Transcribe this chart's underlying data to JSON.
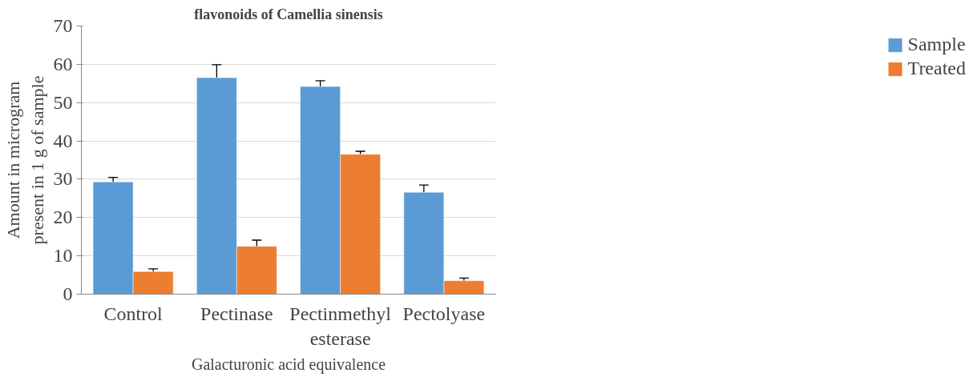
{
  "chart_data": {
    "type": "bar",
    "title": "flavonoids of Camellia sinensis",
    "categories": [
      "Control",
      "Pectinase",
      "Pectinmethyl esterase",
      "Pectolyase"
    ],
    "series": [
      {
        "name": "Sample",
        "color": "#5b9bd5",
        "values": [
          29.3,
          56.5,
          54.2,
          26.6
        ],
        "errors": [
          1.2,
          3.4,
          1.5,
          1.9
        ]
      },
      {
        "name": "Treated",
        "color": "#ed7d31",
        "values": [
          5.9,
          12.5,
          36.5,
          3.5
        ],
        "errors": [
          0.7,
          1.6,
          0.8,
          0.7
        ]
      }
    ],
    "xlabel": "Galacturonic acid equivalence",
    "ylabel": "Amount in microgram present in 1 g of sample",
    "ylim": [
      0,
      70
    ],
    "yticks": [
      0,
      10,
      20,
      30,
      40,
      50,
      60,
      70
    ],
    "grid": "y",
    "legend": "right"
  }
}
